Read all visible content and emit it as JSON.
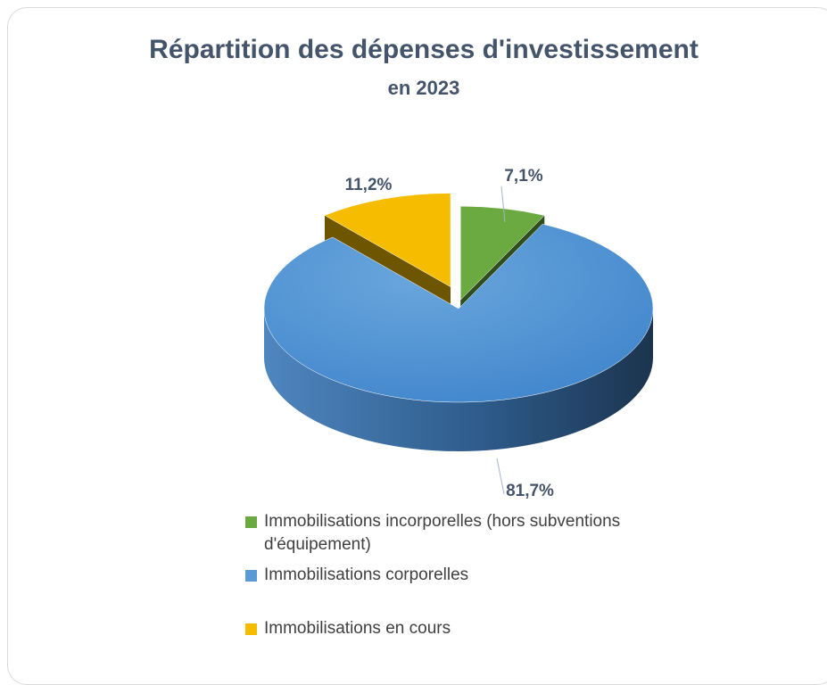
{
  "chart_data": {
    "type": "pie",
    "title": "Répartition des dépenses d'investissement",
    "subtitle": "en 2023",
    "categories": [
      "Immobilisations incorporelles (hors subventions d'équipement)",
      "Immobilisations corporelles",
      "Immobilisations en cours"
    ],
    "values": [
      7.1,
      81.7,
      11.2
    ],
    "value_labels": [
      "7,1%",
      "81,7%",
      "11,2%"
    ],
    "colors": [
      "#6aaa40",
      "#5b9bd5",
      "#f5bc00"
    ],
    "legend": "bottom"
  }
}
